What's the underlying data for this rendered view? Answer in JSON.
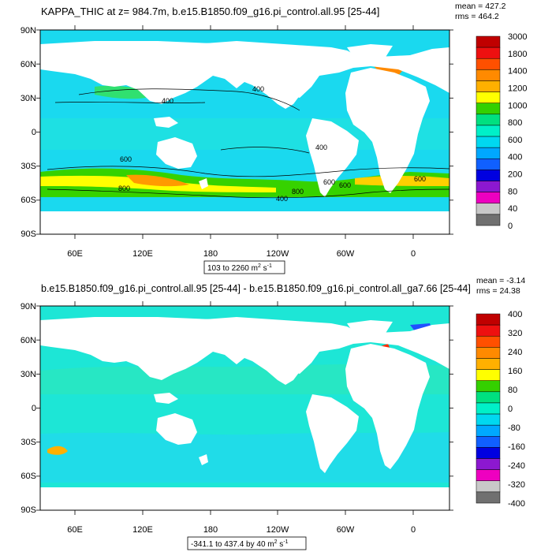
{
  "panels": [
    {
      "title": "KAPPA_THIC at z= 984.7m, b.e15.B1850.f09_g16.pi_control.all.95 [25-44]",
      "stat_mean": "mean = 427.2",
      "stat_rms": "rms = 464.2",
      "range_text": "103 to 2260 m",
      "range_sup": "2",
      "range_tail": " s",
      "range_sup2": "-1",
      "lat_labels": [
        "90N",
        "60N",
        "30N",
        "0",
        "30S",
        "60S",
        "90S"
      ],
      "lon_labels": [
        "60E",
        "120E",
        "180",
        "120W",
        "60W",
        "0"
      ],
      "colorbar_labels": [
        "3000",
        "1800",
        "1400",
        "1200",
        "1000",
        "800",
        "600",
        "400",
        "200",
        "80",
        "40",
        "0"
      ],
      "colorbar_colors": [
        "#c00000",
        "#ee1010",
        "#ff5000",
        "#ff8a00",
        "#ffb000",
        "#ffff00",
        "#34d000",
        "#00e080",
        "#00f0c8",
        "#00d8f0",
        "#00a8ff",
        "#1060ff",
        "#0000e0",
        "#8c18d0",
        "#ee00c0",
        "#c8c8c8",
        "#707070"
      ],
      "contour_labels": [
        "400",
        "400",
        "400",
        "600",
        "600",
        "800",
        "600",
        "800",
        "400",
        "600"
      ]
    },
    {
      "title": "b.e15.B1850.f09_g16.pi_control.all.95 [25-44] - b.e15.B1850.f09_g16.pi_control.all_ga7.66 [25-44]",
      "stat_mean": "mean = -3.14",
      "stat_rms": "rms = 24.38",
      "range_text": "-341.1 to 437.4 by 40 m",
      "range_sup": "2",
      "range_tail": " s",
      "range_sup2": "-1",
      "lat_labels": [
        "90N",
        "60N",
        "30N",
        "0",
        "30S",
        "60S",
        "90S"
      ],
      "lon_labels": [
        "60E",
        "120E",
        "180",
        "120W",
        "60W",
        "0"
      ],
      "colorbar_labels": [
        "400",
        "320",
        "240",
        "160",
        "80",
        "0",
        "-80",
        "-160",
        "-240",
        "-320",
        "-400"
      ],
      "colorbar_colors": [
        "#c00000",
        "#ee1010",
        "#ff5000",
        "#ff8a00",
        "#ffb000",
        "#ffff00",
        "#34d000",
        "#00e080",
        "#00f0c8",
        "#00d8f0",
        "#00a8ff",
        "#1060ff",
        "#0000e0",
        "#8c18d0",
        "#ee00c0",
        "#c8c8c8",
        "#707070"
      ]
    }
  ],
  "colors": {
    "land": "#ffffff",
    "ocean_top": "#19d6f2",
    "ocean_bottom": "#1bf0cf"
  }
}
